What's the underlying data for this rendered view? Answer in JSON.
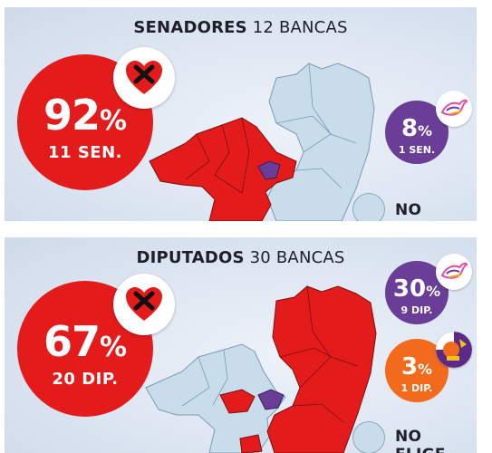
{
  "senadores": {
    "title_bold": "SENADORES",
    "title_light": "12 BANCAS",
    "main": {
      "pct": "92",
      "sign": "%",
      "label": "11 SEN."
    },
    "secondary": {
      "pct": "8",
      "sign": "%",
      "label": "1 SEN."
    },
    "no_elige": "NO ELIGE"
  },
  "diputados": {
    "title_bold": "DIPUTADOS",
    "title_light": "30 BANCAS",
    "main": {
      "pct": "67",
      "sign": "%",
      "label": "20 DIP."
    },
    "secondary": {
      "pct": "30",
      "sign": "%",
      "label": "9 DIP."
    },
    "tertiary": {
      "pct": "3",
      "sign": "%",
      "label": "1 DIP."
    },
    "no_elige": "NO ELIGE"
  },
  "colors": {
    "red": "#e31b1b",
    "purple": "#6a3d97",
    "orange": "#f26a1b",
    "no_elige": "#c9dcea"
  },
  "icons": [
    "heart-check-logo",
    "dove-logo",
    "party-seal-logo"
  ]
}
